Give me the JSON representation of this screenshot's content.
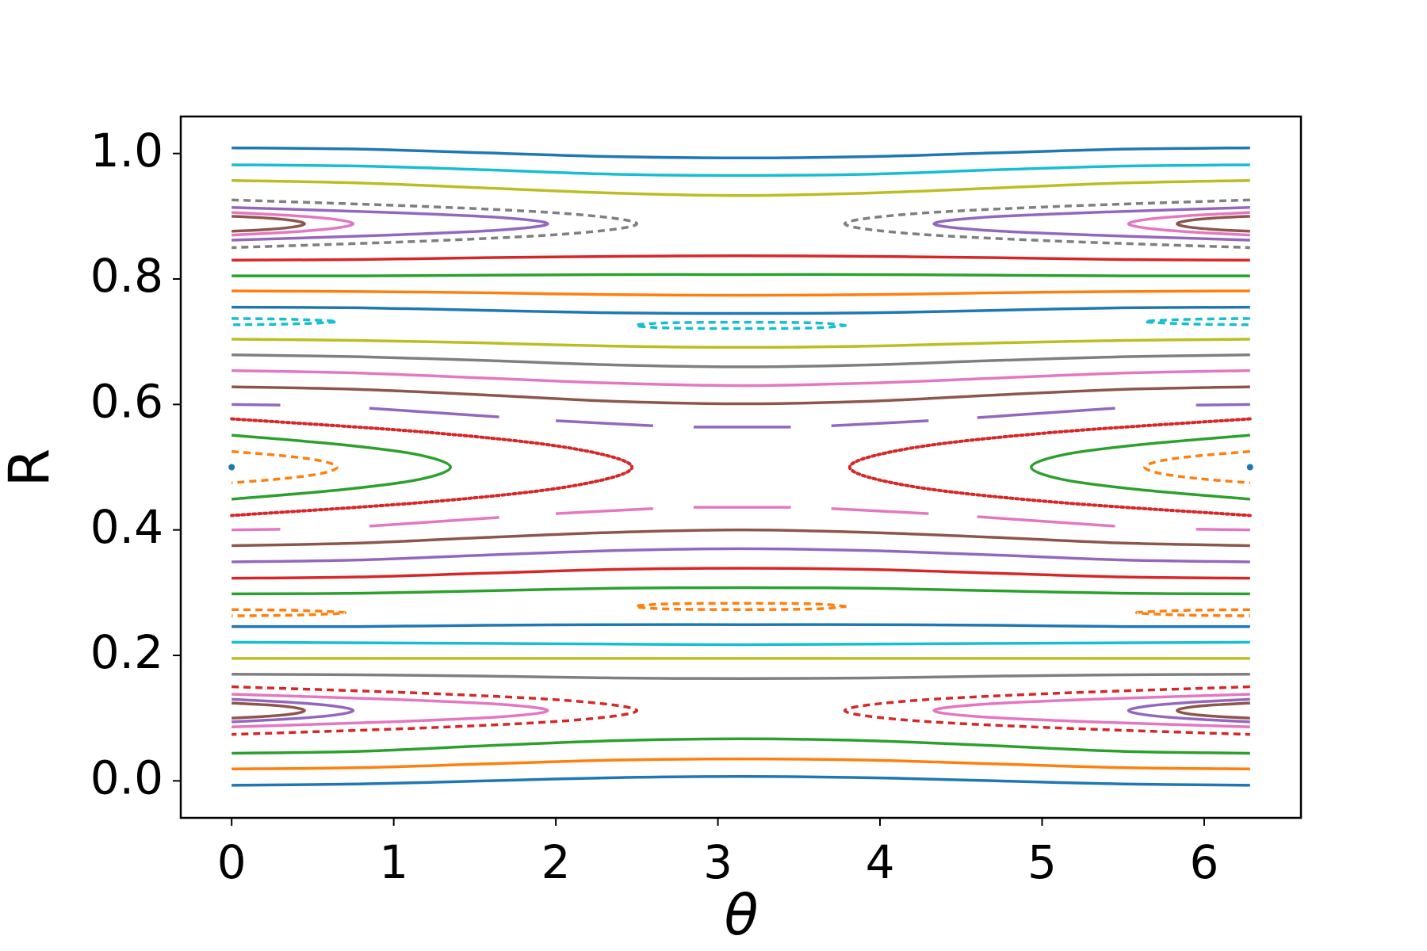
{
  "chart_data": {
    "type": "line",
    "xlabel": "θ",
    "ylabel": "R",
    "xlim": [
      -0.314,
      6.597
    ],
    "ylim": [
      -0.059,
      1.059
    ],
    "xticks": [
      0,
      1,
      2,
      3,
      4,
      5,
      6
    ],
    "yticks": [
      {
        "value": 0,
        "label": "0.0"
      },
      0.2,
      0.4,
      0.6,
      0.8,
      {
        "value": 1,
        "label": "1.0"
      }
    ],
    "x": [
      0,
      0.785,
      1.571,
      2.356,
      3.142,
      3.927,
      4.712,
      5.498,
      6.283
    ],
    "series": [
      {
        "color": "#1f77b4",
        "style": "solid",
        "values": [
          1.009,
          1.007,
          1.001,
          0.995,
          0.993,
          0.995,
          1.001,
          1.007,
          1.009
        ]
      },
      {
        "color": "#17becf",
        "style": "solid",
        "values": [
          0.982,
          0.98,
          0.974,
          0.967,
          0.965,
          0.967,
          0.974,
          0.98,
          0.982
        ]
      },
      {
        "color": "#bcbd22",
        "style": "solid",
        "values": [
          0.957,
          0.953,
          0.945,
          0.937,
          0.933,
          0.937,
          0.945,
          0.953,
          0.957
        ]
      },
      {
        "color": "#d62728",
        "style": "solid",
        "values": [
          0.83,
          0.831,
          0.834,
          0.836,
          0.837,
          0.836,
          0.834,
          0.831,
          0.83
        ]
      },
      {
        "color": "#2ca02c",
        "style": "solid",
        "values": [
          0.805,
          0.805,
          0.806,
          0.807,
          0.807,
          0.807,
          0.806,
          0.805,
          0.805
        ]
      },
      {
        "color": "#ff7f0e",
        "style": "solid",
        "values": [
          0.781,
          0.78,
          0.778,
          0.775,
          0.774,
          0.775,
          0.778,
          0.78,
          0.781
        ]
      },
      {
        "color": "#1f77b4",
        "style": "solid",
        "values": [
          0.755,
          0.754,
          0.75,
          0.746,
          0.745,
          0.746,
          0.75,
          0.754,
          0.755
        ]
      },
      {
        "color": "#bcbd22",
        "style": "solid",
        "values": [
          0.704,
          0.702,
          0.698,
          0.693,
          0.691,
          0.693,
          0.698,
          0.702,
          0.704
        ]
      },
      {
        "color": "#7f7f7f",
        "style": "solid",
        "values": [
          0.679,
          0.676,
          0.67,
          0.663,
          0.66,
          0.663,
          0.67,
          0.676,
          0.679
        ]
      },
      {
        "color": "#e377c2",
        "style": "solid",
        "values": [
          0.654,
          0.65,
          0.642,
          0.634,
          0.63,
          0.634,
          0.642,
          0.65,
          0.654
        ]
      },
      {
        "color": "#8c564b",
        "style": "solid",
        "values": [
          0.628,
          0.624,
          0.615,
          0.605,
          0.601,
          0.605,
          0.615,
          0.624,
          0.628
        ]
      },
      {
        "color": "#8c564b",
        "style": "solid",
        "values": [
          0.375,
          0.379,
          0.388,
          0.396,
          0.4,
          0.396,
          0.388,
          0.379,
          0.375
        ]
      },
      {
        "color": "#9467bd",
        "style": "solid",
        "values": [
          0.349,
          0.352,
          0.36,
          0.367,
          0.37,
          0.367,
          0.36,
          0.352,
          0.349
        ]
      },
      {
        "color": "#d62728",
        "style": "solid",
        "values": [
          0.323,
          0.325,
          0.331,
          0.337,
          0.339,
          0.337,
          0.331,
          0.325,
          0.323
        ]
      },
      {
        "color": "#2ca02c",
        "style": "solid",
        "values": [
          0.298,
          0.299,
          0.303,
          0.307,
          0.308,
          0.307,
          0.303,
          0.299,
          0.298
        ]
      },
      {
        "color": "#1f77b4",
        "style": "solid",
        "values": [
          0.246,
          0.246,
          0.248,
          0.249,
          0.249,
          0.249,
          0.248,
          0.246,
          0.246
        ]
      },
      {
        "color": "#17becf",
        "style": "solid",
        "values": [
          0.221,
          0.22,
          0.219,
          0.218,
          0.217,
          0.218,
          0.219,
          0.22,
          0.221
        ]
      },
      {
        "color": "#bcbd22",
        "style": "solid",
        "values": [
          0.195,
          0.195,
          0.195,
          0.195,
          0.195,
          0.195,
          0.195,
          0.195,
          0.195
        ]
      },
      {
        "color": "#7f7f7f",
        "style": "solid",
        "values": [
          0.17,
          0.169,
          0.167,
          0.164,
          0.163,
          0.164,
          0.167,
          0.169,
          0.17
        ]
      },
      {
        "color": "#2ca02c",
        "style": "solid",
        "values": [
          0.044,
          0.047,
          0.056,
          0.064,
          0.067,
          0.064,
          0.056,
          0.047,
          0.044
        ]
      },
      {
        "color": "#ff7f0e",
        "style": "solid",
        "values": [
          0.019,
          0.021,
          0.027,
          0.033,
          0.035,
          0.033,
          0.027,
          0.021,
          0.019
        ]
      },
      {
        "color": "#1f77b4",
        "style": "solid",
        "values": [
          -0.007,
          -0.005,
          0,
          0.005,
          0.007,
          0.005,
          0,
          -0.005,
          -0.007
        ]
      },
      {
        "color": "#8c564b",
        "style": "solid",
        "x": [
          0,
          0.225,
          0.383,
          0.45,
          0.383,
          0.225,
          0,
          null,
          6.283,
          6.058,
          5.9,
          5.833,
          5.9,
          6.058,
          6.283
        ],
        "values": [
          0.9,
          0.897,
          0.893,
          0.888,
          0.883,
          0.879,
          0.876,
          null,
          0.9,
          0.897,
          0.893,
          0.888,
          0.883,
          0.879,
          0.876
        ]
      },
      {
        "color": "#e377c2",
        "style": "solid",
        "x": [
          0,
          0.375,
          0.638,
          0.75,
          0.638,
          0.375,
          0,
          null,
          6.283,
          5.908,
          5.645,
          5.533,
          5.645,
          5.908,
          6.283
        ],
        "values": [
          0.906,
          0.901,
          0.895,
          0.888,
          0.881,
          0.875,
          0.87,
          null,
          0.906,
          0.901,
          0.895,
          0.888,
          0.881,
          0.875,
          0.87
        ]
      },
      {
        "color": "#9467bd",
        "style": "solid",
        "x": [
          0,
          0.975,
          1.658,
          1.95,
          1.658,
          0.975,
          0,
          null,
          6.283,
          5.308,
          4.625,
          4.333,
          4.625,
          5.308,
          6.283
        ],
        "values": [
          0.914,
          0.906,
          0.898,
          0.888,
          0.878,
          0.87,
          0.862,
          null,
          0.914,
          0.906,
          0.898,
          0.888,
          0.878,
          0.87,
          0.862
        ]
      },
      {
        "color": "#7f7f7f",
        "style": "dashed",
        "x": [
          0,
          1.25,
          2.125,
          2.5,
          2.125,
          1.25,
          0,
          null,
          6.283,
          5.033,
          4.158,
          3.783,
          4.158,
          5.033,
          6.283
        ],
        "values": [
          0.926,
          0.915,
          0.903,
          0.888,
          0.873,
          0.861,
          0.85,
          null,
          0.926,
          0.915,
          0.903,
          0.888,
          0.873,
          0.861,
          0.85
        ]
      },
      {
        "color": "#8c564b",
        "style": "solid",
        "x": [
          0,
          0.225,
          0.383,
          0.45,
          0.383,
          0.225,
          0,
          null,
          6.283,
          6.058,
          5.9,
          5.833,
          5.9,
          6.058,
          6.283
        ],
        "values": [
          0.124,
          0.121,
          0.117,
          0.112,
          0.107,
          0.103,
          0.1,
          null,
          0.124,
          0.121,
          0.117,
          0.112,
          0.107,
          0.103,
          0.1
        ]
      },
      {
        "color": "#9467bd",
        "style": "solid",
        "x": [
          0,
          0.375,
          0.638,
          0.75,
          0.638,
          0.375,
          0,
          null,
          6.283,
          5.908,
          5.645,
          5.533,
          5.645,
          5.908,
          6.283
        ],
        "values": [
          0.13,
          0.125,
          0.119,
          0.112,
          0.105,
          0.099,
          0.094,
          null,
          0.13,
          0.125,
          0.119,
          0.112,
          0.105,
          0.099,
          0.094
        ]
      },
      {
        "color": "#e377c2",
        "style": "solid",
        "x": [
          0,
          0.975,
          1.658,
          1.95,
          1.658,
          0.975,
          0,
          null,
          6.283,
          5.308,
          4.625,
          4.333,
          4.625,
          5.308,
          6.283
        ],
        "values": [
          0.138,
          0.13,
          0.122,
          0.112,
          0.102,
          0.094,
          0.086,
          null,
          0.138,
          0.13,
          0.122,
          0.112,
          0.102,
          0.094,
          0.086
        ]
      },
      {
        "color": "#d62728",
        "style": "dashed",
        "x": [
          0,
          1.25,
          2.125,
          2.5,
          2.125,
          1.25,
          0,
          null,
          6.283,
          5.033,
          4.158,
          3.783,
          4.158,
          5.033,
          6.283
        ],
        "values": [
          0.15,
          0.139,
          0.127,
          0.112,
          0.097,
          0.085,
          0.074,
          null,
          0.15,
          0.139,
          0.127,
          0.112,
          0.097,
          0.085,
          0.074
        ]
      },
      {
        "color": "#ff7f0e",
        "style": "dashed",
        "x": [
          0,
          0.325,
          0.553,
          0.65,
          0.553,
          0.325,
          0,
          null,
          6.283,
          5.958,
          5.73,
          5.633,
          5.73,
          5.958,
          6.283
        ],
        "values": [
          0.525,
          0.518,
          0.51,
          0.5,
          0.49,
          0.482,
          0.475,
          null,
          0.525,
          0.518,
          0.51,
          0.5,
          0.49,
          0.482,
          0.475
        ]
      },
      {
        "color": "#2ca02c",
        "style": "solid",
        "x": [
          0,
          0.675,
          1.148,
          1.35,
          1.148,
          0.675,
          0,
          null,
          6.283,
          5.608,
          5.135,
          4.933,
          5.135,
          5.608,
          6.283
        ],
        "values": [
          0.551,
          0.536,
          0.52,
          0.5,
          0.48,
          0.464,
          0.449,
          null,
          0.551,
          0.536,
          0.52,
          0.5,
          0.48,
          0.464,
          0.449
        ]
      },
      {
        "color": "#d62728",
        "style": "dotted",
        "x": [
          0,
          1.235,
          2.1,
          2.47,
          2.1,
          1.235,
          0,
          null,
          6.283,
          5.048,
          4.183,
          3.813,
          4.183,
          5.048,
          6.283
        ],
        "values": [
          0.577,
          0.555,
          0.53,
          0.5,
          0.47,
          0.445,
          0.423,
          null,
          0.577,
          0.555,
          0.53,
          0.5,
          0.47,
          0.445,
          0.423
        ]
      },
      {
        "color": "#17becf",
        "style": "dashed",
        "x": [
          0,
          0.325,
          0.553,
          0.65,
          0.553,
          0.325,
          0,
          null,
          6.283,
          5.958,
          5.73,
          5.633,
          5.73,
          5.958,
          6.283
        ],
        "values": [
          0.737,
          0.736,
          0.734,
          0.732,
          0.73,
          0.728,
          0.727,
          null,
          0.737,
          0.736,
          0.734,
          0.732,
          0.73,
          0.728,
          0.727
        ]
      },
      {
        "color": "#ff7f0e",
        "style": "dashed",
        "x": [
          0,
          0.35,
          0.595,
          0.7,
          0.595,
          0.35,
          0,
          null,
          6.283,
          5.933,
          5.688,
          5.583,
          5.688,
          5.933,
          6.283
        ],
        "values": [
          0.273,
          0.272,
          0.27,
          0.268,
          0.266,
          0.264,
          0.263,
          null,
          0.273,
          0.272,
          0.27,
          0.268,
          0.266,
          0.264,
          0.263
        ]
      },
      {
        "color": "#17becf",
        "style": "dashed",
        "x": [
          3.792,
          3.601,
          3.142,
          2.682,
          2.492,
          2.682,
          3.142,
          3.601,
          3.792
        ],
        "values": [
          0.726,
          0.73,
          0.731,
          0.73,
          0.726,
          0.722,
          0.721,
          0.722,
          0.726
        ]
      },
      {
        "color": "#ff7f0e",
        "style": "dashed",
        "x": [
          3.792,
          3.601,
          3.142,
          2.682,
          2.492,
          2.682,
          3.142,
          3.601,
          3.792
        ],
        "values": [
          0.278,
          0.282,
          0.283,
          0.282,
          0.278,
          0.274,
          0.273,
          0.274,
          0.278
        ]
      },
      {
        "color": "#9467bd",
        "style": "solid",
        "x": [
          0,
          0.3,
          null,
          0.85,
          1.65,
          null,
          2.0,
          2.6,
          null,
          2.85,
          3.45,
          null,
          3.7,
          4.3,
          null,
          4.6,
          5.45,
          null,
          5.95,
          6.283
        ],
        "values": [
          0.6,
          0.599,
          null,
          0.594,
          0.58,
          null,
          0.574,
          0.566,
          null,
          0.564,
          0.564,
          null,
          0.566,
          0.574,
          null,
          0.579,
          0.594,
          null,
          0.599,
          0.6
        ]
      },
      {
        "color": "#e377c2",
        "style": "solid",
        "x": [
          0,
          0.3,
          null,
          0.85,
          1.65,
          null,
          2.0,
          2.6,
          null,
          2.85,
          3.45,
          null,
          3.7,
          4.3,
          null,
          4.6,
          5.45,
          null,
          5.95,
          6.283
        ],
        "values": [
          0.4,
          0.401,
          null,
          0.406,
          0.42,
          null,
          0.426,
          0.434,
          null,
          0.436,
          0.436,
          null,
          0.434,
          0.426,
          null,
          0.421,
          0.406,
          null,
          0.401,
          0.4
        ]
      },
      {
        "color": "#1f77b4",
        "style": "points",
        "x": [
          0,
          6.283
        ],
        "values": [
          0.5,
          0.5
        ]
      }
    ]
  }
}
